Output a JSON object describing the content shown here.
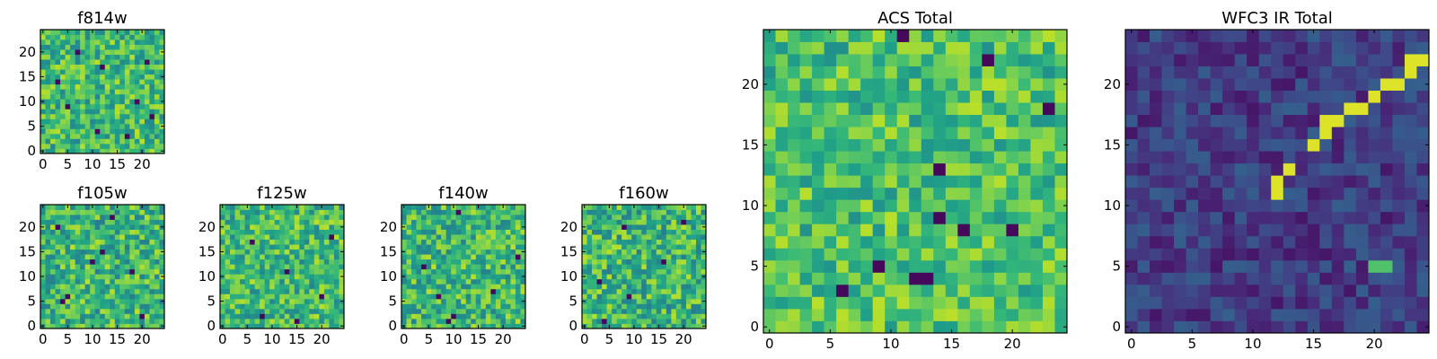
{
  "chart_data": [
    {
      "id": "f814w",
      "type": "heatmap",
      "title": "f814w",
      "grid_size": 25,
      "xlim": [
        -0.5,
        24.5
      ],
      "ylim": [
        -0.5,
        24.5
      ],
      "xticks": [
        0,
        5,
        10,
        15,
        20
      ],
      "yticks": [
        0,
        5,
        10,
        15,
        20
      ],
      "colormap": "viridis",
      "pattern": "uniform noise, bright (mostly green-yellow) with a few dark pixels",
      "seed": 814,
      "mean": 0.68,
      "spread": 0.22,
      "dark_pixels": [
        [
          3,
          14
        ],
        [
          5,
          9
        ],
        [
          7,
          20
        ],
        [
          11,
          4
        ],
        [
          12,
          17
        ],
        [
          17,
          3
        ],
        [
          19,
          10
        ],
        [
          22,
          7
        ],
        [
          21,
          18
        ]
      ]
    },
    {
      "id": "f105w",
      "type": "heatmap",
      "title": "f105w",
      "grid_size": 25,
      "xlim": [
        -0.5,
        24.5
      ],
      "ylim": [
        -0.5,
        24.5
      ],
      "xticks": [
        0,
        5,
        10,
        15,
        20
      ],
      "yticks": [
        0,
        5,
        10,
        15,
        20
      ],
      "colormap": "viridis",
      "pattern": "smooth noise, mostly green-yellow",
      "seed": 105,
      "mean": 0.66,
      "spread": 0.24,
      "dark_pixels": [
        [
          4,
          5
        ],
        [
          5,
          6
        ],
        [
          10,
          13
        ],
        [
          12,
          15
        ],
        [
          3,
          20
        ],
        [
          20,
          2
        ],
        [
          18,
          11
        ],
        [
          14,
          22
        ]
      ]
    },
    {
      "id": "f125w",
      "type": "heatmap",
      "title": "f125w",
      "grid_size": 25,
      "xlim": [
        -0.5,
        24.5
      ],
      "ylim": [
        -0.5,
        24.5
      ],
      "xticks": [
        0,
        5,
        10,
        15,
        20
      ],
      "yticks": [
        0,
        5,
        10,
        15,
        20
      ],
      "colormap": "viridis",
      "pattern": "smooth noise, mostly green-yellow",
      "seed": 125,
      "mean": 0.68,
      "spread": 0.22,
      "dark_pixels": [
        [
          8,
          2
        ],
        [
          15,
          1
        ],
        [
          20,
          6
        ],
        [
          6,
          17
        ],
        [
          13,
          11
        ],
        [
          22,
          18
        ]
      ]
    },
    {
      "id": "f140w",
      "type": "heatmap",
      "title": "f140w",
      "grid_size": 25,
      "xlim": [
        -0.5,
        24.5
      ],
      "ylim": [
        -0.5,
        24.5
      ],
      "xticks": [
        0,
        5,
        10,
        15,
        20
      ],
      "yticks": [
        0,
        5,
        10,
        15,
        20
      ],
      "colormap": "viridis",
      "pattern": "smooth noise, mostly green-yellow",
      "seed": 140,
      "mean": 0.67,
      "spread": 0.23,
      "dark_pixels": [
        [
          9,
          1
        ],
        [
          10,
          2
        ],
        [
          11,
          23
        ],
        [
          7,
          6
        ],
        [
          18,
          7
        ],
        [
          23,
          14
        ],
        [
          4,
          12
        ]
      ]
    },
    {
      "id": "f160w",
      "type": "heatmap",
      "title": "f160w",
      "grid_size": 25,
      "xlim": [
        -0.5,
        24.5
      ],
      "ylim": [
        -0.5,
        24.5
      ],
      "xticks": [
        0,
        5,
        10,
        15,
        20
      ],
      "yticks": [
        0,
        5,
        10,
        15,
        20
      ],
      "colormap": "viridis",
      "pattern": "smooth noise, mostly green-yellow",
      "seed": 160,
      "mean": 0.66,
      "spread": 0.24,
      "dark_pixels": [
        [
          4,
          1
        ],
        [
          3,
          9
        ],
        [
          9,
          6
        ],
        [
          16,
          13
        ],
        [
          20,
          21
        ],
        [
          8,
          20
        ]
      ]
    },
    {
      "id": "acs_total",
      "type": "heatmap",
      "title": "ACS Total",
      "grid_size": 25,
      "xlim": [
        -0.5,
        24.5
      ],
      "ylim": [
        -0.5,
        24.5
      ],
      "xticks": [
        0,
        5,
        10,
        15,
        20
      ],
      "yticks": [
        0,
        5,
        10,
        15,
        20
      ],
      "colormap": "viridis",
      "pattern": "uniform noise, bright (green-yellow) with a few dark pixels",
      "seed": 999,
      "mean": 0.7,
      "spread": 0.2,
      "dark_pixels": [
        [
          11,
          24
        ],
        [
          18,
          22
        ],
        [
          14,
          13
        ],
        [
          9,
          5
        ],
        [
          12,
          4
        ],
        [
          13,
          4
        ],
        [
          14,
          9
        ],
        [
          16,
          8
        ],
        [
          20,
          8
        ],
        [
          6,
          3
        ],
        [
          23,
          18
        ]
      ]
    },
    {
      "id": "wfc3_ir_total",
      "type": "heatmap",
      "title": "WFC3 IR Total",
      "grid_size": 25,
      "xlim": [
        -0.5,
        24.5
      ],
      "ylim": [
        -0.5,
        24.5
      ],
      "xticks": [
        0,
        5,
        10,
        15,
        20
      ],
      "yticks": [
        0,
        5,
        10,
        15,
        20
      ],
      "colormap": "viridis",
      "pattern": "dark noise background with a bright diagonal streak from about (12,11) up to (24,22) and a faint spot near (20,5)",
      "seed": 316,
      "mean": 0.18,
      "spread": 0.12,
      "bright_pixels": [
        [
          12,
          11
        ],
        [
          12,
          12
        ],
        [
          13,
          13
        ],
        [
          15,
          15
        ],
        [
          16,
          16
        ],
        [
          16,
          17
        ],
        [
          17,
          17
        ],
        [
          18,
          18
        ],
        [
          19,
          18
        ],
        [
          20,
          19
        ],
        [
          21,
          20
        ],
        [
          22,
          20
        ],
        [
          23,
          21
        ],
        [
          23,
          22
        ],
        [
          24,
          22
        ],
        [
          20,
          5
        ],
        [
          21,
          5
        ]
      ]
    }
  ]
}
